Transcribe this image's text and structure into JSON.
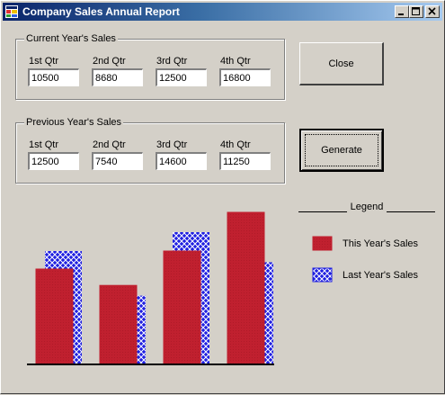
{
  "window": {
    "title": "Company Sales Annual Report"
  },
  "current": {
    "group_label": "Current Year's Sales",
    "quarters": [
      {
        "label": "1st Qtr",
        "value": "10500"
      },
      {
        "label": "2nd Qtr",
        "value": "8680"
      },
      {
        "label": "3rd Qtr",
        "value": "12500"
      },
      {
        "label": "4th Qtr",
        "value": "16800"
      }
    ]
  },
  "previous": {
    "group_label": "Previous Year's Sales",
    "quarters": [
      {
        "label": "1st Qtr",
        "value": "12500"
      },
      {
        "label": "2nd Qtr",
        "value": "7540"
      },
      {
        "label": "3rd Qtr",
        "value": "14600"
      },
      {
        "label": "4th Qtr",
        "value": "11250"
      }
    ]
  },
  "buttons": {
    "close_label": "Close",
    "generate_label": "Generate"
  },
  "legend": {
    "title": "Legend",
    "this_year": "This Year's Sales",
    "last_year": "Last Year's Sales"
  },
  "colors": {
    "this_year": "#c0202f",
    "last_year": "#1f1fe0",
    "titlebar_start": "#0a246a"
  },
  "chart_data": {
    "type": "bar",
    "categories": [
      "1st Qtr",
      "2nd Qtr",
      "3rd Qtr",
      "4th Qtr"
    ],
    "series": [
      {
        "name": "This Year's Sales",
        "values": [
          10500,
          8680,
          12500,
          16800
        ]
      },
      {
        "name": "Last Year's Sales",
        "values": [
          12500,
          7540,
          14600,
          11250
        ]
      }
    ],
    "ylim": [
      0,
      16800
    ],
    "grid": false
  }
}
